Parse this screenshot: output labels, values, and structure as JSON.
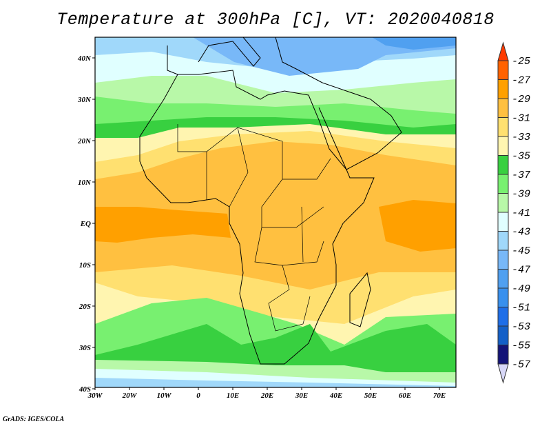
{
  "title": "Temperature at 300hPa [C], VT: 2020040818",
  "credit": "GrADS: IGES/COLA",
  "map": {
    "lon_range": [
      -30,
      75
    ],
    "lat_range": [
      -40,
      45
    ],
    "x_ticks": [
      "30W",
      "20W",
      "10W",
      "0",
      "10E",
      "20E",
      "30E",
      "40E",
      "50E",
      "60E",
      "70E"
    ],
    "y_ticks": [
      "40N",
      "30N",
      "20N",
      "10N",
      "EQ",
      "10S",
      "20S",
      "30S",
      "40S"
    ]
  },
  "colorbar": {
    "labels": [
      "-25",
      "-27",
      "-29",
      "-31",
      "-33",
      "-35",
      "-37",
      "-39",
      "-41",
      "-43",
      "-45",
      "-47",
      "-49",
      "-51",
      "-53",
      "-55",
      "-57"
    ],
    "top_arrow_color": "#ff3a00",
    "bottom_arrow_color": "#d8d8f8",
    "colors": [
      "#ff6200",
      "#ffa000",
      "#ffc040",
      "#ffe070",
      "#fff5b0",
      "#38d040",
      "#78f070",
      "#b8f8a8",
      "#e0ffff",
      "#a0d8fa",
      "#78b8f8",
      "#50a0f0",
      "#3890ee",
      "#1e6ee8",
      "#1460c8",
      "#141478"
    ]
  }
}
